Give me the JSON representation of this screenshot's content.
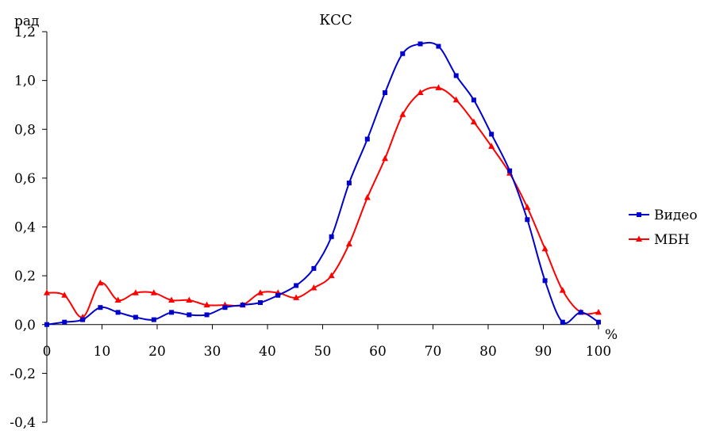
{
  "chart_data": {
    "type": "line",
    "title": "КСС",
    "ylabel": "рад",
    "xlabel": "%",
    "xlim": [
      0,
      100
    ],
    "ylim": [
      -0.4,
      1.2
    ],
    "x_ticks": [
      "0",
      "10",
      "20",
      "30",
      "40",
      "50",
      "60",
      "70",
      "80",
      "90",
      "100"
    ],
    "y_ticks": [
      "1,2",
      "1,0",
      "0,8",
      "0,6",
      "0,4",
      "0,2",
      "0,0",
      "-0,2",
      "-0,4"
    ],
    "grid": false,
    "legend_position": "right",
    "series": [
      {
        "name": "Видео",
        "color": "#0000cc",
        "marker": "square",
        "x": [
          0,
          3.2,
          6.5,
          9.7,
          12.9,
          16.1,
          19.4,
          22.6,
          25.8,
          29.0,
          32.3,
          35.5,
          38.7,
          41.9,
          45.2,
          48.4,
          51.6,
          54.8,
          58.1,
          61.3,
          64.5,
          67.7,
          71.0,
          74.2,
          77.4,
          80.6,
          83.9,
          87.1,
          90.3,
          93.5,
          96.8,
          100
        ],
        "values": [
          0.0,
          0.01,
          0.02,
          0.07,
          0.05,
          0.03,
          0.02,
          0.05,
          0.04,
          0.04,
          0.07,
          0.08,
          0.09,
          0.12,
          0.16,
          0.23,
          0.36,
          0.58,
          0.76,
          0.95,
          1.11,
          1.15,
          1.14,
          1.02,
          0.92,
          0.78,
          0.63,
          0.43,
          0.18,
          0.01,
          0.05,
          0.01
        ]
      },
      {
        "name": "МБН",
        "color": "#ff0000",
        "marker": "triangle",
        "x": [
          0,
          3.2,
          6.5,
          9.7,
          12.9,
          16.1,
          19.4,
          22.6,
          25.8,
          29.0,
          32.3,
          35.5,
          38.7,
          41.9,
          45.2,
          48.4,
          51.6,
          54.8,
          58.1,
          61.3,
          64.5,
          67.7,
          71.0,
          74.2,
          77.4,
          80.6,
          83.9,
          87.1,
          90.3,
          93.5,
          96.8,
          100
        ],
        "values": [
          0.13,
          0.12,
          0.03,
          0.17,
          0.1,
          0.13,
          0.13,
          0.1,
          0.1,
          0.08,
          0.08,
          0.08,
          0.13,
          0.13,
          0.11,
          0.15,
          0.2,
          0.33,
          0.52,
          0.68,
          0.86,
          0.95,
          0.97,
          0.92,
          0.83,
          0.73,
          0.62,
          0.48,
          0.31,
          0.14,
          0.05,
          0.05
        ]
      }
    ]
  }
}
